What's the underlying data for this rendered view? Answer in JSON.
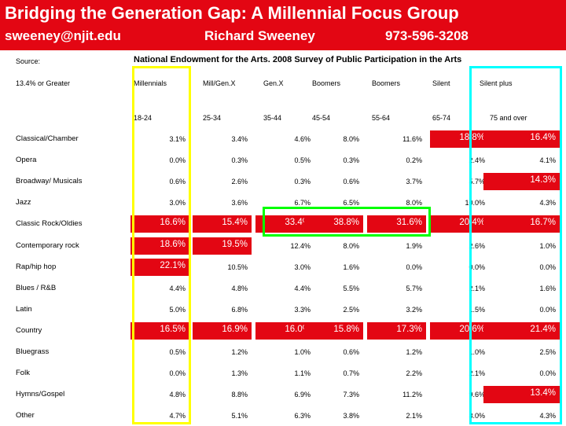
{
  "header": {
    "title": "Bridging the Generation Gap: A Millennial Focus Group",
    "email": "sweeney@njit.edu",
    "name": "Richard Sweeney",
    "phone": "973-596-3208"
  },
  "source_label": "Source:",
  "source_text": "National Endowment for the Arts. 2008 Survey of Public Participation in the Arts",
  "threshold_label": "13.4% or Greater",
  "groups": [
    "Millennials",
    "Mill/Gen.X",
    "Gen.X",
    "Boomers",
    "Boomers",
    "Silent",
    "Silent plus"
  ],
  "ages": [
    "18-24",
    "25-34",
    "35-44",
    "45-54",
    "55-64",
    "65-74",
    "75 and over"
  ],
  "rows": [
    {
      "label": "Classical/Chamber",
      "values": [
        "3.1%",
        "3.4%",
        "4.6%",
        "8.0%",
        "11.6%",
        "18.8%",
        "16.4%"
      ],
      "hl": [
        false,
        false,
        false,
        false,
        false,
        true,
        true
      ]
    },
    {
      "label": "Opera",
      "values": [
        "0.0%",
        "0.3%",
        "0.5%",
        "0.3%",
        "0.2%",
        "2.4%",
        "4.1%"
      ],
      "hl": [
        false,
        false,
        false,
        false,
        false,
        false,
        false
      ]
    },
    {
      "label": "Broadway/ Musicals",
      "values": [
        "0.6%",
        "2.6%",
        "0.3%",
        "0.6%",
        "3.7%",
        "5.7%",
        "14.3%"
      ],
      "hl": [
        false,
        false,
        false,
        false,
        false,
        false,
        true
      ]
    },
    {
      "label": "Jazz",
      "values": [
        "3.0%",
        "3.6%",
        "6.7%",
        "6.5%",
        "8.0%",
        "10.0%",
        "4.3%"
      ],
      "hl": [
        false,
        false,
        false,
        false,
        false,
        false,
        false
      ]
    },
    {
      "label": "Classic Rock/Oldies",
      "values": [
        "16.6%",
        "15.4%",
        "33.4%",
        "38.8%",
        "31.6%",
        "20.4%",
        "16.7%"
      ],
      "hl": [
        true,
        true,
        true,
        true,
        true,
        true,
        true
      ]
    },
    {
      "label": "Contemporary rock",
      "values": [
        "18.6%",
        "19.5%",
        "12.4%",
        "8.0%",
        "1.9%",
        "2.6%",
        "1.0%"
      ],
      "hl": [
        true,
        true,
        false,
        false,
        false,
        false,
        false
      ]
    },
    {
      "label": "Rap/hip hop",
      "values": [
        "22.1%",
        "10.5%",
        "3.0%",
        "1.6%",
        "0.0%",
        "0.0%",
        "0.0%"
      ],
      "hl": [
        true,
        false,
        false,
        false,
        false,
        false,
        false
      ]
    },
    {
      "label": "Blues / R&B",
      "values": [
        "4.4%",
        "4.8%",
        "4.4%",
        "5.5%",
        "5.7%",
        "2.1%",
        "1.6%"
      ],
      "hl": [
        false,
        false,
        false,
        false,
        false,
        false,
        false
      ]
    },
    {
      "label": "Latin",
      "values": [
        "5.0%",
        "6.8%",
        "3.3%",
        "2.5%",
        "3.2%",
        "1.5%",
        "0.0%"
      ],
      "hl": [
        false,
        false,
        false,
        false,
        false,
        false,
        false
      ]
    },
    {
      "label": "Country",
      "values": [
        "16.5%",
        "16.9%",
        "16.0%",
        "15.8%",
        "17.3%",
        "20.6%",
        "21.4%"
      ],
      "hl": [
        true,
        true,
        true,
        true,
        true,
        true,
        true
      ]
    },
    {
      "label": "Bluegrass",
      "values": [
        "0.5%",
        "1.2%",
        "1.0%",
        "0.6%",
        "1.2%",
        "1.0%",
        "2.5%"
      ],
      "hl": [
        false,
        false,
        false,
        false,
        false,
        false,
        false
      ]
    },
    {
      "label": "Folk",
      "values": [
        "0.0%",
        "1.3%",
        "1.1%",
        "0.7%",
        "2.2%",
        "2.1%",
        "0.0%"
      ],
      "hl": [
        false,
        false,
        false,
        false,
        false,
        false,
        false
      ]
    },
    {
      "label": "Hymns/Gospel",
      "values": [
        "4.8%",
        "8.8%",
        "6.9%",
        "7.3%",
        "11.2%",
        "9.6%",
        "13.4%"
      ],
      "hl": [
        false,
        false,
        false,
        false,
        false,
        false,
        true
      ]
    },
    {
      "label": "Other",
      "values": [
        "4.7%",
        "5.1%",
        "6.3%",
        "3.8%",
        "2.1%",
        "3.0%",
        "4.3%"
      ],
      "hl": [
        false,
        false,
        false,
        false,
        false,
        false,
        false
      ]
    }
  ],
  "colors": {
    "highlight": "#e30613",
    "header": "#e30613",
    "yellow_box": "#ffff00",
    "green_box": "#00ff00",
    "cyan_box": "#00ffff"
  }
}
